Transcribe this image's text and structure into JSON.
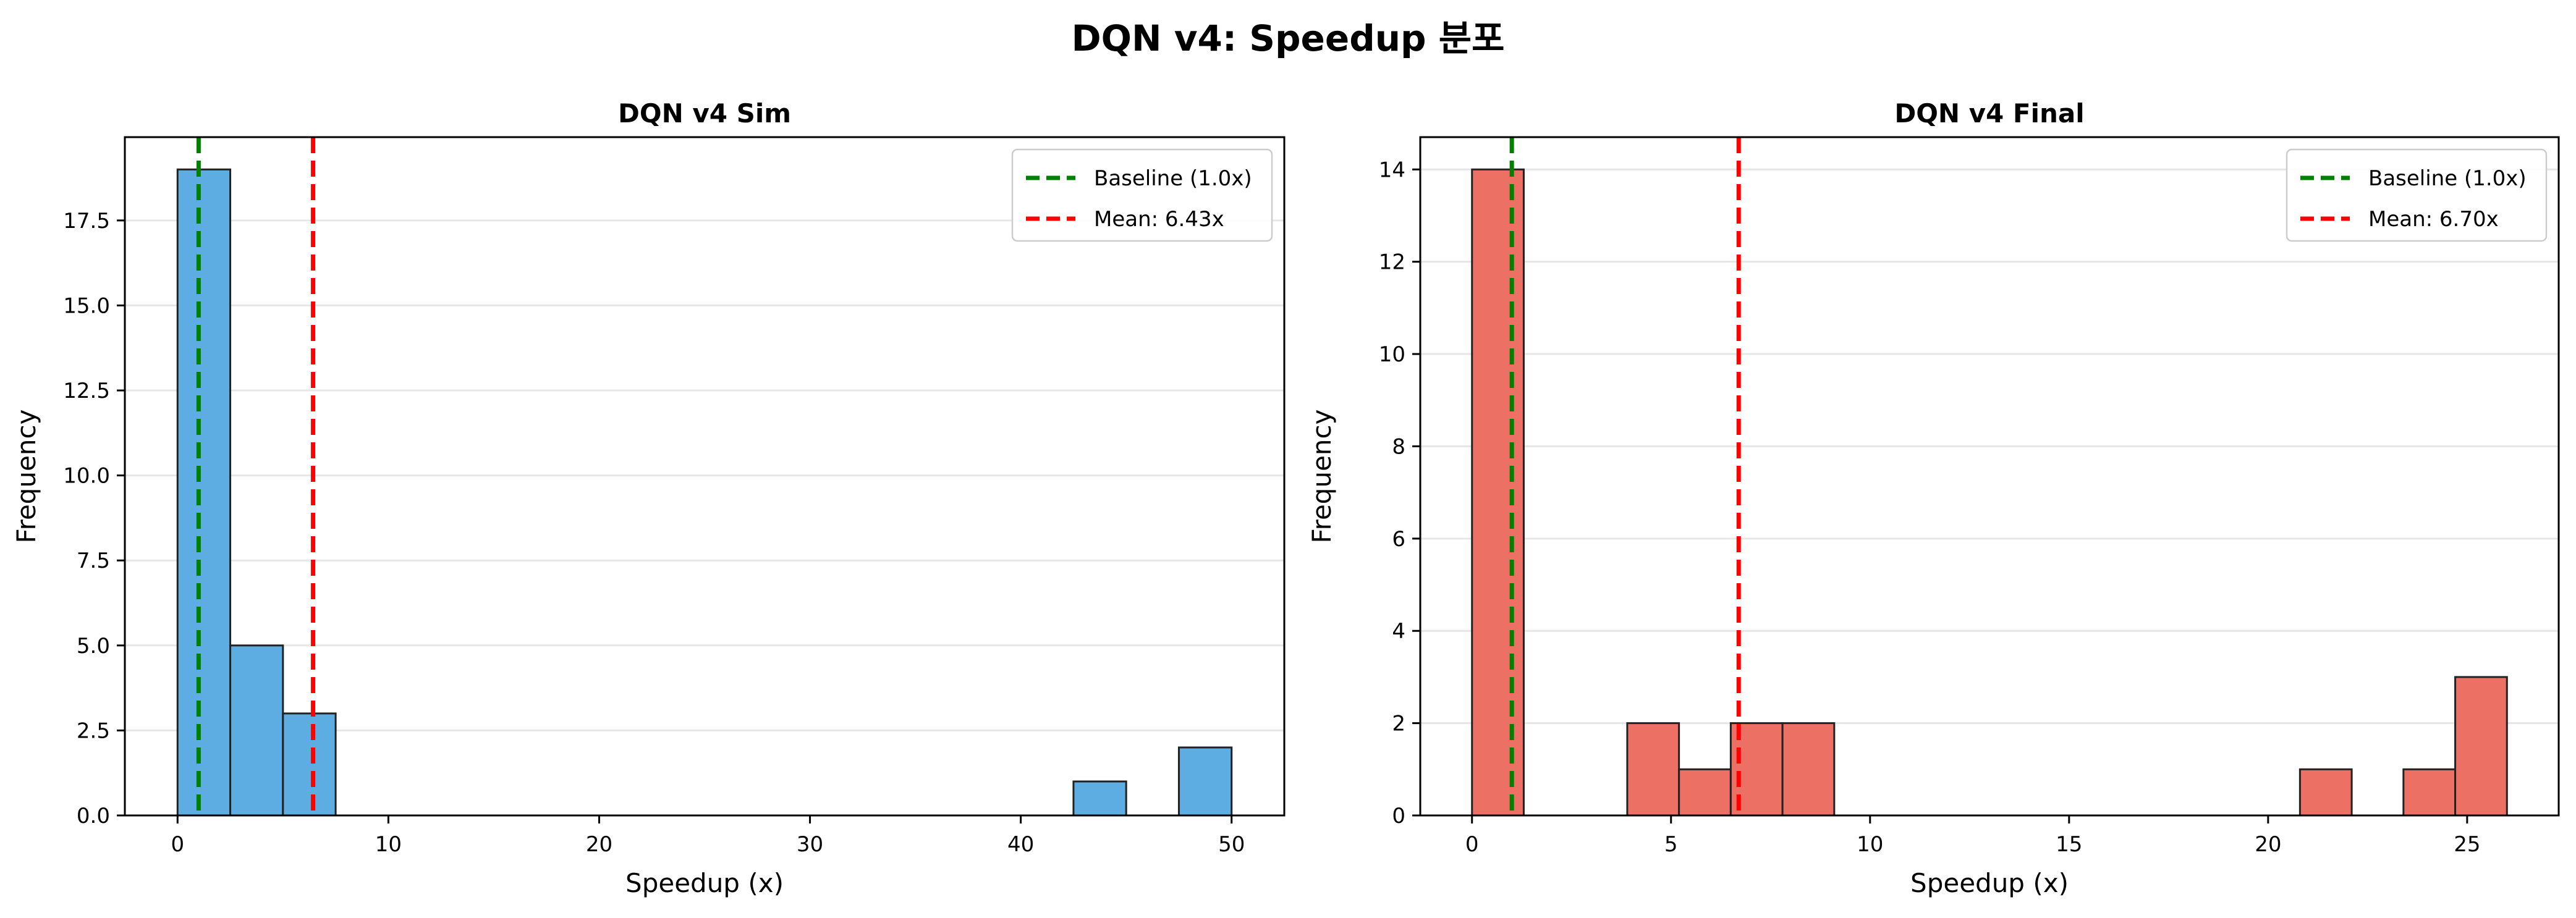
{
  "figure": {
    "suptitle": "DQN v4: Speedup 분포"
  },
  "chart_data": [
    {
      "type": "bar",
      "subtype": "histogram",
      "title": "DQN v4 Sim",
      "xlabel": "Speedup (x)",
      "ylabel": "Frequency",
      "xlim": [
        -2.5,
        52.5
      ],
      "ylim": [
        0,
        19.95
      ],
      "xticks": [
        0,
        10,
        20,
        30,
        40,
        50
      ],
      "yticks": [
        0.0,
        2.5,
        5.0,
        7.5,
        10.0,
        12.5,
        15.0,
        17.5
      ],
      "ytick_labels": [
        "0.0",
        "2.5",
        "5.0",
        "7.5",
        "10.0",
        "12.5",
        "15.0",
        "17.5"
      ],
      "grid": "y",
      "bar_color": "#5DADE2",
      "bins": [
        {
          "x0": 0.0,
          "x1": 2.5,
          "count": 19
        },
        {
          "x0": 2.5,
          "x1": 5.0,
          "count": 5
        },
        {
          "x0": 5.0,
          "x1": 7.5,
          "count": 3
        },
        {
          "x0": 42.5,
          "x1": 45.0,
          "count": 1
        },
        {
          "x0": 47.5,
          "x1": 50.0,
          "count": 2
        }
      ],
      "reference_lines": [
        {
          "x": 1.0,
          "color": "#008000",
          "label": "Baseline (1.0x)"
        },
        {
          "x": 6.43,
          "color": "#ff0000",
          "label": "Mean: 6.43x"
        }
      ],
      "legend_position": "top-right"
    },
    {
      "type": "bar",
      "subtype": "histogram",
      "title": "DQN v4 Final",
      "xlabel": "Speedup (x)",
      "ylabel": "Frequency",
      "xlim": [
        -1.3,
        27.3
      ],
      "ylim": [
        0,
        14.7
      ],
      "xticks": [
        0,
        5,
        10,
        15,
        20,
        25
      ],
      "yticks": [
        0,
        2,
        4,
        6,
        8,
        10,
        12,
        14
      ],
      "ytick_labels": [
        "0",
        "2",
        "4",
        "6",
        "8",
        "10",
        "12",
        "14"
      ],
      "grid": "y",
      "bar_color": "#EC7063",
      "bins": [
        {
          "x0": 0.0,
          "x1": 1.3,
          "count": 14
        },
        {
          "x0": 3.9,
          "x1": 5.2,
          "count": 2
        },
        {
          "x0": 5.2,
          "x1": 6.5,
          "count": 1
        },
        {
          "x0": 6.5,
          "x1": 7.8,
          "count": 2
        },
        {
          "x0": 7.8,
          "x1": 9.1,
          "count": 2
        },
        {
          "x0": 20.8,
          "x1": 22.1,
          "count": 1
        },
        {
          "x0": 23.4,
          "x1": 24.7,
          "count": 1
        },
        {
          "x0": 24.7,
          "x1": 26.0,
          "count": 3
        }
      ],
      "reference_lines": [
        {
          "x": 1.0,
          "color": "#008000",
          "label": "Baseline (1.0x)"
        },
        {
          "x": 6.7,
          "color": "#ff0000",
          "label": "Mean: 6.70x"
        }
      ],
      "legend_position": "top-right"
    }
  ]
}
